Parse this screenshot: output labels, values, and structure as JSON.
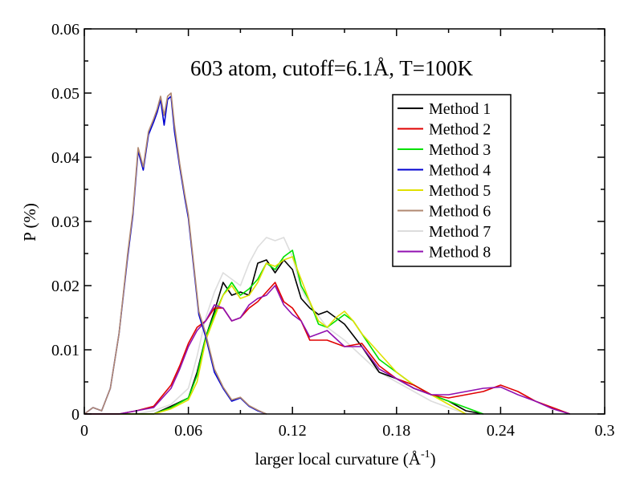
{
  "chart_data": {
    "type": "line",
    "title": "603 atom, cutoff=6.1Å, T=100K",
    "xlabel": "larger local curvature (Å",
    "xlabel_sup": "-1",
    "xlabel_close": ")",
    "ylabel": "P (%)",
    "xlim": [
      0,
      0.3
    ],
    "ylim": [
      0,
      0.06
    ],
    "xticks": [
      0,
      0.06,
      0.12,
      0.18,
      0.24,
      0.3
    ],
    "xtick_labels": [
      "0",
      "0.06",
      "0.12",
      "0.18",
      "0.24",
      "0.3"
    ],
    "yticks": [
      0,
      0.01,
      0.02,
      0.03,
      0.04,
      0.05,
      0.06
    ],
    "ytick_labels": [
      "0",
      "0.01",
      "0.02",
      "0.03",
      "0.04",
      "0.05",
      "0.06"
    ],
    "grid": false,
    "legend_position": "top-right",
    "series": [
      {
        "name": "Method 1",
        "color": "#000000",
        "x": [
          0.0,
          0.03,
          0.04,
          0.05,
          0.06,
          0.065,
          0.07,
          0.075,
          0.08,
          0.085,
          0.09,
          0.095,
          0.1,
          0.105,
          0.11,
          0.115,
          0.12,
          0.125,
          0.13,
          0.135,
          0.14,
          0.15,
          0.16,
          0.17,
          0.18,
          0.19,
          0.2,
          0.21,
          0.22,
          0.23
        ],
        "y": [
          0.0,
          0.0,
          0.0,
          0.0012,
          0.0025,
          0.0065,
          0.012,
          0.016,
          0.0205,
          0.0185,
          0.019,
          0.0185,
          0.0235,
          0.024,
          0.022,
          0.024,
          0.0225,
          0.018,
          0.0165,
          0.0155,
          0.016,
          0.014,
          0.0105,
          0.0065,
          0.0055,
          0.004,
          0.003,
          0.002,
          0.0005,
          0.0
        ]
      },
      {
        "name": "Method 2",
        "color": "#e00000",
        "x": [
          0.0,
          0.02,
          0.03,
          0.04,
          0.05,
          0.055,
          0.06,
          0.065,
          0.07,
          0.075,
          0.08,
          0.085,
          0.09,
          0.095,
          0.1,
          0.105,
          0.11,
          0.115,
          0.12,
          0.125,
          0.13,
          0.14,
          0.15,
          0.16,
          0.17,
          0.18,
          0.19,
          0.2,
          0.21,
          0.22,
          0.23,
          0.24,
          0.25,
          0.26,
          0.27,
          0.28
        ],
        "y": [
          0.0,
          0.0,
          0.0005,
          0.0012,
          0.0045,
          0.0075,
          0.011,
          0.0135,
          0.0145,
          0.0165,
          0.0165,
          0.0145,
          0.015,
          0.0165,
          0.0175,
          0.019,
          0.0205,
          0.0175,
          0.0165,
          0.0145,
          0.0115,
          0.0115,
          0.0105,
          0.011,
          0.0075,
          0.0055,
          0.0045,
          0.003,
          0.0025,
          0.003,
          0.0035,
          0.0045,
          0.0035,
          0.002,
          0.001,
          0.0
        ]
      },
      {
        "name": "Method 3",
        "color": "#00e000",
        "x": [
          0.0,
          0.03,
          0.04,
          0.05,
          0.06,
          0.065,
          0.07,
          0.075,
          0.08,
          0.085,
          0.09,
          0.095,
          0.1,
          0.105,
          0.11,
          0.115,
          0.12,
          0.125,
          0.13,
          0.135,
          0.14,
          0.145,
          0.15,
          0.155,
          0.16,
          0.17,
          0.18,
          0.19,
          0.2,
          0.21,
          0.22,
          0.23
        ],
        "y": [
          0.0,
          0.0,
          0.0,
          0.001,
          0.0025,
          0.006,
          0.012,
          0.0155,
          0.0185,
          0.0205,
          0.0185,
          0.0195,
          0.021,
          0.0235,
          0.0225,
          0.0245,
          0.0255,
          0.02,
          0.0175,
          0.014,
          0.0135,
          0.0145,
          0.0155,
          0.0145,
          0.0125,
          0.0085,
          0.0065,
          0.0045,
          0.003,
          0.002,
          0.001,
          0.0
        ]
      },
      {
        "name": "Method 4",
        "color": "#0000d0",
        "x": [
          0.0,
          0.005,
          0.01,
          0.015,
          0.02,
          0.025,
          0.028,
          0.031,
          0.034,
          0.037,
          0.04,
          0.042,
          0.044,
          0.046,
          0.048,
          0.05,
          0.052,
          0.055,
          0.058,
          0.06,
          0.063,
          0.066,
          0.07,
          0.075,
          0.08,
          0.085,
          0.09,
          0.095,
          0.1,
          0.105
        ],
        "y": [
          0.0,
          0.001,
          0.0005,
          0.004,
          0.0125,
          0.0245,
          0.031,
          0.041,
          0.038,
          0.0435,
          0.0455,
          0.047,
          0.049,
          0.045,
          0.049,
          0.0495,
          0.044,
          0.0385,
          0.0335,
          0.0305,
          0.023,
          0.0155,
          0.012,
          0.0065,
          0.004,
          0.002,
          0.0025,
          0.0012,
          0.0005,
          0.0
        ]
      },
      {
        "name": "Method 5",
        "color": "#e0e000",
        "x": [
          0.0,
          0.03,
          0.04,
          0.05,
          0.06,
          0.065,
          0.07,
          0.075,
          0.08,
          0.085,
          0.09,
          0.095,
          0.1,
          0.105,
          0.11,
          0.115,
          0.12,
          0.125,
          0.13,
          0.135,
          0.14,
          0.145,
          0.15,
          0.155,
          0.16,
          0.17,
          0.18,
          0.19,
          0.2,
          0.21,
          0.22
        ],
        "y": [
          0.0,
          0.0,
          0.0,
          0.0008,
          0.0022,
          0.005,
          0.0115,
          0.015,
          0.0185,
          0.02,
          0.018,
          0.0185,
          0.0205,
          0.0235,
          0.023,
          0.024,
          0.0245,
          0.021,
          0.0175,
          0.0145,
          0.0135,
          0.015,
          0.016,
          0.0145,
          0.0125,
          0.0095,
          0.0065,
          0.0045,
          0.003,
          0.0015,
          0.0
        ]
      },
      {
        "name": "Method 6",
        "color": "#b08870",
        "x": [
          0.0,
          0.005,
          0.01,
          0.015,
          0.02,
          0.025,
          0.028,
          0.031,
          0.034,
          0.037,
          0.04,
          0.042,
          0.044,
          0.046,
          0.048,
          0.05,
          0.052,
          0.055,
          0.058,
          0.06,
          0.063,
          0.066,
          0.07,
          0.075,
          0.08,
          0.085,
          0.09,
          0.095,
          0.1,
          0.105
        ],
        "y": [
          0.0,
          0.001,
          0.0005,
          0.004,
          0.0125,
          0.025,
          0.0315,
          0.0415,
          0.0385,
          0.044,
          0.046,
          0.0475,
          0.0495,
          0.0465,
          0.0495,
          0.05,
          0.045,
          0.039,
          0.034,
          0.031,
          0.0235,
          0.016,
          0.0125,
          0.007,
          0.0042,
          0.0022,
          0.0026,
          0.0013,
          0.0006,
          0.0
        ]
      },
      {
        "name": "Method 7",
        "color": "#dddddd",
        "x": [
          0.0,
          0.03,
          0.04,
          0.05,
          0.06,
          0.065,
          0.07,
          0.075,
          0.08,
          0.085,
          0.09,
          0.095,
          0.1,
          0.105,
          0.11,
          0.115,
          0.12,
          0.125,
          0.13,
          0.14,
          0.15,
          0.16,
          0.17,
          0.18,
          0.19,
          0.2,
          0.21,
          0.22
        ],
        "y": [
          0.0,
          0.0,
          0.0005,
          0.0015,
          0.004,
          0.009,
          0.015,
          0.019,
          0.022,
          0.021,
          0.02,
          0.0235,
          0.026,
          0.0275,
          0.027,
          0.0275,
          0.0245,
          0.0195,
          0.017,
          0.0135,
          0.0115,
          0.009,
          0.0065,
          0.005,
          0.0035,
          0.002,
          0.001,
          0.0
        ]
      },
      {
        "name": "Method 8",
        "color": "#9010b0",
        "x": [
          0.0,
          0.02,
          0.03,
          0.04,
          0.05,
          0.055,
          0.06,
          0.065,
          0.07,
          0.075,
          0.08,
          0.085,
          0.09,
          0.095,
          0.1,
          0.105,
          0.11,
          0.115,
          0.12,
          0.125,
          0.13,
          0.14,
          0.15,
          0.16,
          0.17,
          0.18,
          0.19,
          0.2,
          0.21,
          0.22,
          0.23,
          0.24,
          0.25,
          0.26,
          0.27,
          0.28
        ],
        "y": [
          0.0,
          0.0,
          0.0005,
          0.001,
          0.004,
          0.007,
          0.0105,
          0.013,
          0.0145,
          0.017,
          0.0165,
          0.0145,
          0.015,
          0.017,
          0.018,
          0.0185,
          0.02,
          0.017,
          0.0155,
          0.0145,
          0.012,
          0.013,
          0.0105,
          0.0105,
          0.007,
          0.0055,
          0.004,
          0.003,
          0.003,
          0.0035,
          0.004,
          0.0042,
          0.003,
          0.002,
          0.0008,
          0.0
        ]
      }
    ]
  }
}
